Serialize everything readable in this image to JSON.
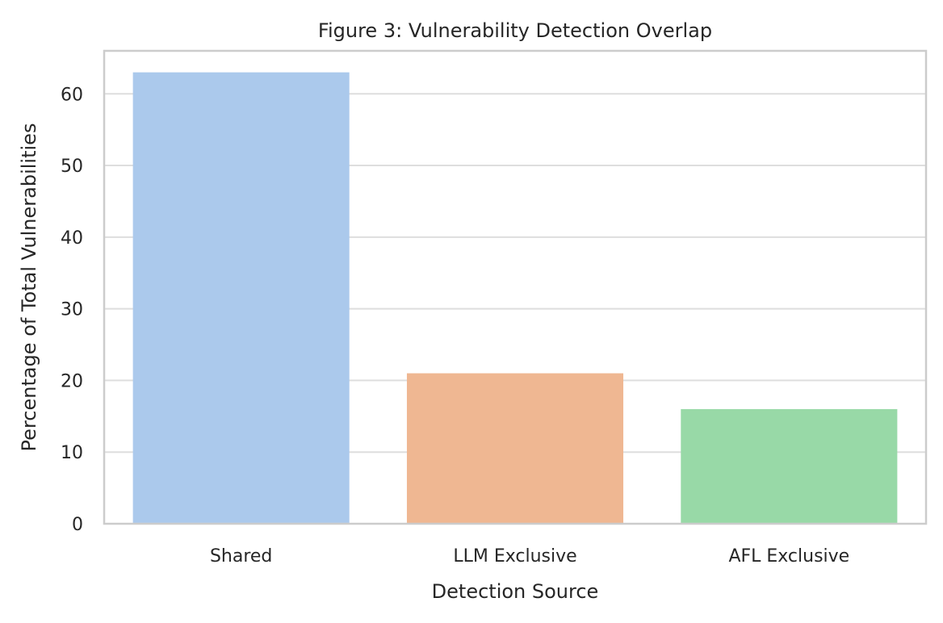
{
  "chart_data": {
    "type": "bar",
    "title": "Figure 3: Vulnerability Detection Overlap",
    "xlabel": "Detection Source",
    "ylabel": "Percentage of Total Vulnerabilities",
    "categories": [
      "Shared",
      "LLM Exclusive",
      "AFL Exclusive"
    ],
    "values": [
      63,
      21,
      16
    ],
    "ylim": [
      0,
      66
    ],
    "yticks": [
      0,
      10,
      20,
      30,
      40,
      50,
      60
    ],
    "grid": "horizontal",
    "colors": [
      "#abc9ec",
      "#efb792",
      "#98d9a7"
    ],
    "grid_color": "#dedede",
    "spine_color": "#cccccc"
  }
}
